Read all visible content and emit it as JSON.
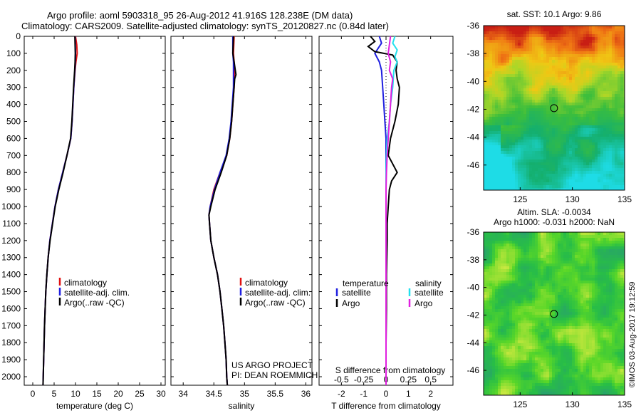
{
  "header": {
    "title_line1": "Argo profile: aoml 5903318_95 26-Aug-2012 41.916S 128.238E (DM data)",
    "title_line2": "Climatology: CARS2009. Satellite-adjusted climatology: synTS_20120827.nc (0.84d later)"
  },
  "colors": {
    "climatology": "#e01010",
    "satellite": "#1f1fe0",
    "argo": "#000000",
    "satellite_salinity": "#22e0ee",
    "argo_salinity": "#e020e0"
  },
  "chart_data": [
    {
      "id": "temperature",
      "type": "line",
      "xlabel": "temperature (deg C)",
      "ylabel": "",
      "xlim": [
        -2,
        31
      ],
      "ylim": [
        2050,
        0
      ],
      "xticks": [
        0,
        5,
        10,
        15,
        20,
        25,
        30
      ],
      "yticks": [
        0,
        100,
        200,
        300,
        400,
        500,
        600,
        700,
        800,
        900,
        1000,
        1100,
        1200,
        1300,
        1400,
        1500,
        1600,
        1700,
        1800,
        1900,
        2000
      ],
      "legend": [
        "climatology",
        "satellite-adj. clim.",
        "Argo(..raw -QC)"
      ],
      "series": [
        {
          "name": "climatology",
          "color_key": "climatology",
          "depth": [
            0,
            50,
            100,
            150,
            200,
            300,
            400,
            500,
            600,
            700,
            800,
            900,
            1000,
            1100,
            1200,
            1300,
            1400,
            1500,
            1600,
            1700,
            1800,
            1900,
            2000,
            2050
          ],
          "values": [
            10.0,
            10.3,
            10.4,
            10.1,
            9.9,
            9.6,
            9.4,
            9.2,
            8.9,
            8.0,
            7.0,
            6.0,
            5.2,
            4.6,
            4.0,
            3.6,
            3.3,
            3.05,
            2.9,
            2.75,
            2.65,
            2.55,
            2.45,
            2.4
          ]
        },
        {
          "name": "satellite-adj. clim.",
          "color_key": "satellite",
          "depth": [
            0,
            50,
            100,
            150,
            200,
            300,
            400,
            500,
            600,
            700,
            800,
            900,
            1000,
            1100,
            1200,
            1300,
            1400,
            1500,
            1600,
            1700,
            1800,
            1900,
            2000,
            2050
          ],
          "values": [
            9.9,
            9.95,
            10.0,
            9.95,
            9.85,
            9.6,
            9.4,
            9.2,
            8.9,
            8.0,
            7.0,
            6.0,
            5.2,
            4.6,
            4.0,
            3.6,
            3.3,
            3.05,
            2.9,
            2.75,
            2.65,
            2.55,
            2.45,
            2.4
          ]
        },
        {
          "name": "Argo(..raw -QC)",
          "color_key": "argo",
          "depth": [
            0,
            50,
            100,
            150,
            200,
            300,
            400,
            500,
            600,
            700,
            800,
            900,
            1000,
            1100,
            1200,
            1300,
            1400,
            1500,
            1600,
            1700,
            1800,
            1900,
            2000,
            2050
          ],
          "values": [
            9.85,
            9.9,
            9.95,
            9.9,
            9.8,
            9.55,
            9.35,
            9.15,
            8.85,
            8.0,
            7.1,
            6.1,
            5.25,
            4.65,
            4.05,
            3.6,
            3.3,
            3.05,
            2.9,
            2.75,
            2.65,
            2.55,
            2.45,
            2.4
          ]
        }
      ]
    },
    {
      "id": "salinity",
      "type": "line",
      "xlabel": "salinity",
      "ylabel": "",
      "xlim": [
        33.8,
        36.1
      ],
      "ylim": [
        2050,
        0
      ],
      "xticks": [
        34,
        34.5,
        35,
        35.5,
        36
      ],
      "xtick_labels": [
        "34",
        "34.5",
        "35",
        "35.5",
        "36"
      ],
      "legend": [
        "climatology",
        "satellite-adj. clim.",
        "Argo(..raw -QC)"
      ],
      "annotation": [
        "US ARGO PROJECT",
        "PI: DEAN ROEMMICH"
      ],
      "series": [
        {
          "name": "climatology",
          "color_key": "climatology",
          "depth": [
            0,
            100,
            150,
            200,
            250,
            300,
            400,
            500,
            600,
            700,
            800,
            900,
            1000,
            1050,
            1100,
            1200,
            1300,
            1400,
            1500,
            1600,
            1700,
            1800,
            1900,
            2000,
            2050
          ],
          "values": [
            34.83,
            34.82,
            34.83,
            34.84,
            34.83,
            34.83,
            34.81,
            34.79,
            34.76,
            34.71,
            34.6,
            34.5,
            34.44,
            34.42,
            34.43,
            34.45,
            34.5,
            34.56,
            34.6,
            34.63,
            34.66,
            34.68,
            34.7,
            34.71,
            34.72
          ]
        },
        {
          "name": "satellite-adj. clim.",
          "color_key": "satellite",
          "depth": [
            0,
            100,
            150,
            200,
            250,
            300,
            400,
            500,
            600,
            700,
            800,
            900,
            1000,
            1050,
            1100,
            1200,
            1300,
            1400,
            1500,
            1600,
            1700,
            1800,
            1900,
            2000,
            2050
          ],
          "values": [
            34.81,
            34.81,
            34.82,
            34.82,
            34.82,
            34.82,
            34.8,
            34.78,
            34.75,
            34.7,
            34.6,
            34.51,
            34.44,
            34.42,
            34.43,
            34.45,
            34.5,
            34.56,
            34.6,
            34.63,
            34.66,
            34.68,
            34.7,
            34.71,
            34.72
          ]
        },
        {
          "name": "Argo(..raw -QC)",
          "color_key": "argo",
          "depth": [
            0,
            100,
            150,
            200,
            225,
            250,
            300,
            400,
            500,
            600,
            700,
            800,
            900,
            1000,
            1050,
            1100,
            1200,
            1300,
            1400,
            1500,
            1600,
            1700,
            1800,
            1900,
            2000,
            2050
          ],
          "values": [
            34.82,
            34.81,
            34.83,
            34.85,
            34.86,
            34.84,
            34.83,
            34.81,
            34.79,
            34.76,
            34.71,
            34.62,
            34.52,
            34.45,
            34.42,
            34.43,
            34.45,
            34.5,
            34.56,
            34.6,
            34.63,
            34.66,
            34.68,
            34.7,
            34.71,
            34.72
          ]
        }
      ]
    },
    {
      "id": "differences",
      "type": "line",
      "xlabel": "T difference from climatology",
      "xlabel_top": "S difference from climatology",
      "xlim": [
        -3,
        3
      ],
      "ylim": [
        2050,
        0
      ],
      "xticks": [
        -2,
        -1,
        0,
        1,
        2
      ],
      "s_tick_labels": [
        "-0.5",
        "-0.25",
        "0",
        "0.25",
        "0.5"
      ],
      "s_tick_positions": [
        -2,
        -1,
        0,
        1,
        2
      ],
      "legend_temperature_title": "temperature",
      "legend_salinity_title": "salinity",
      "legend_temperature": [
        "satellite",
        "Argo"
      ],
      "legend_salinity": [
        "satellite",
        "Argo"
      ],
      "series": [
        {
          "name": "temperature satellite",
          "color_key": "satellite",
          "depth": [
            0,
            40,
            80,
            100,
            150,
            200,
            300,
            400,
            500,
            600,
            700,
            800,
            900,
            1000,
            1200,
            1500,
            1800,
            2000,
            2050
          ],
          "values": [
            -0.3,
            -0.2,
            -0.4,
            -0.5,
            -0.3,
            -0.2,
            -0.15,
            -0.1,
            -0.05,
            0,
            0,
            0,
            0,
            0,
            0,
            0,
            0,
            0,
            0
          ]
        },
        {
          "name": "temperature Argo",
          "color_key": "argo",
          "depth": [
            0,
            30,
            60,
            90,
            110,
            150,
            200,
            250,
            300,
            400,
            500,
            600,
            700,
            800,
            850,
            900,
            1000,
            1100,
            1200,
            1400,
            1600,
            1800,
            2000,
            2050
          ],
          "values": [
            -0.7,
            -0.5,
            -0.8,
            -0.5,
            0.3,
            0.5,
            0.45,
            0.5,
            0.6,
            0.55,
            0.4,
            0.2,
            0.1,
            0.5,
            0.25,
            0.15,
            0.1,
            0.05,
            0.05,
            0.02,
            0.02,
            0,
            0,
            0
          ]
        },
        {
          "name": "salinity satellite",
          "color_key": "satellite_salinity",
          "depth": [
            0,
            40,
            80,
            120,
            150,
            200,
            300,
            400,
            500,
            600,
            700,
            800,
            900,
            1000,
            1200,
            1500,
            1800,
            2000,
            2050
          ],
          "values": [
            0.4,
            0.3,
            0.5,
            0.4,
            0.5,
            0.35,
            0.3,
            0.2,
            0.15,
            0.05,
            0.02,
            0,
            0,
            0,
            0,
            0,
            0,
            0,
            0
          ]
        },
        {
          "name": "salinity Argo",
          "color_key": "argo_salinity",
          "depth": [
            0,
            100,
            150,
            200,
            250,
            300,
            400,
            500,
            600,
            700,
            800,
            900,
            1000,
            1200,
            1500,
            1800,
            2000,
            2050
          ],
          "values": [
            0.2,
            0.1,
            0.2,
            0.15,
            0.3,
            0.25,
            0.2,
            0.15,
            0.1,
            0.05,
            0.02,
            0,
            0,
            0,
            0,
            0,
            0,
            0
          ]
        }
      ]
    },
    {
      "id": "sst_map",
      "type": "heatmap",
      "title": "sat. SST: 10.1  Argo: 9.86",
      "xticks": [
        125,
        130,
        135
      ],
      "yticks": [
        -36,
        -38,
        -40,
        -42,
        -44,
        -46
      ],
      "xlim": [
        121.5,
        135
      ],
      "ylim": [
        -47.8,
        -36
      ],
      "marker": {
        "lon": 128.24,
        "lat": -41.92
      },
      "color_levels": [
        "red-orange (north)",
        "yellow-green",
        "green",
        "cyan (south-west)"
      ]
    },
    {
      "id": "sla_map",
      "type": "heatmap",
      "title": "Altim. SLA: -0.0034",
      "subtitle": "Argo h1000: -0.031 h2000: NaN",
      "xticks": [
        125,
        130,
        135
      ],
      "yticks": [
        -36,
        -38,
        -40,
        -42,
        -44,
        -46
      ],
      "xlim": [
        121.5,
        135
      ],
      "ylim": [
        -47.8,
        -36
      ],
      "marker": {
        "lon": 128.24,
        "lat": -41.92
      },
      "side_text": "©IMOS 03-Aug-2017 19:12:59"
    }
  ]
}
